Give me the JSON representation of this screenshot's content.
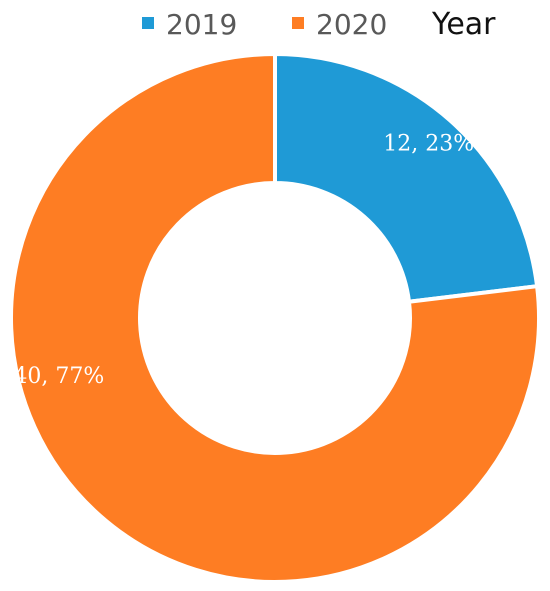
{
  "chart_data": {
    "type": "pie",
    "donut": true,
    "legend_title": "Year",
    "legend_position": "top",
    "categories": [
      "2019",
      "2020"
    ],
    "values": [
      12,
      40
    ],
    "percentages": [
      "23%",
      "77%"
    ],
    "data_labels": [
      "12, 23%",
      "40, 77%"
    ],
    "colors": [
      "#1f9ad6",
      "#fe7d23"
    ]
  }
}
